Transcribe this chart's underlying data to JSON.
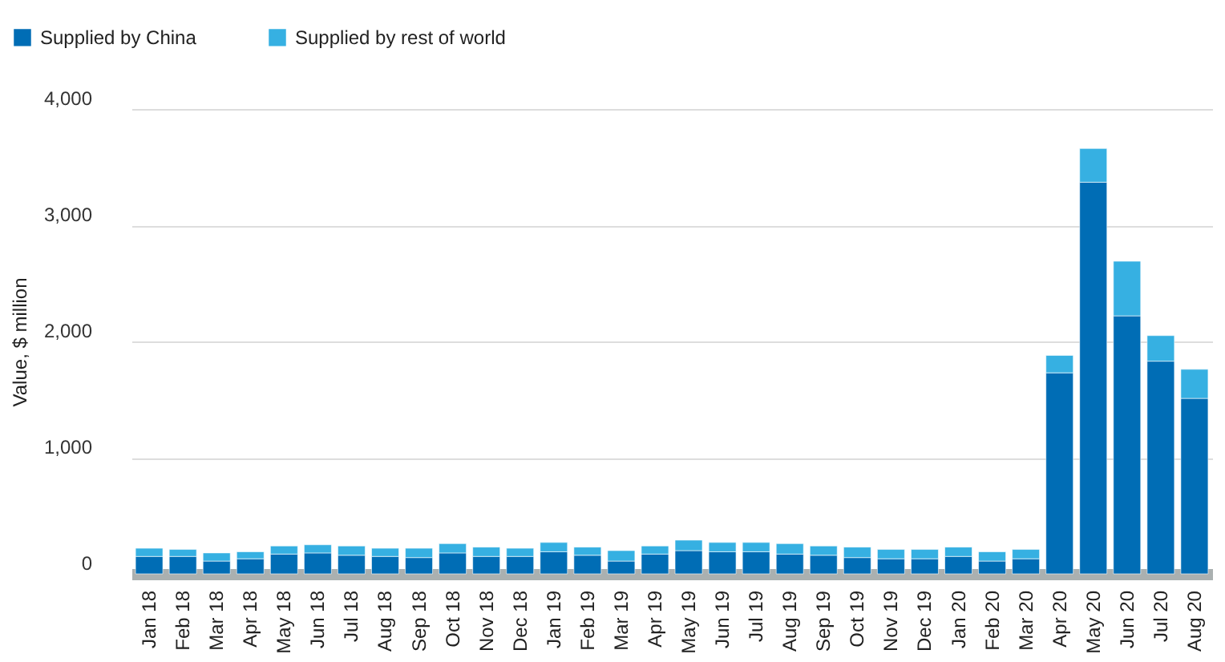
{
  "chart_data": {
    "type": "bar",
    "stacked": true,
    "ylabel": "Value, $ million",
    "categories": [
      "Jan 18",
      "Feb 18",
      "Mar 18",
      "Apr 18",
      "May 18",
      "Jun 18",
      "Jul 18",
      "Aug 18",
      "Sep 18",
      "Oct 18",
      "Nov 18",
      "Dec 18",
      "Jan 19",
      "Feb 19",
      "Mar 19",
      "Apr 19",
      "May 19",
      "Jun 19",
      "Jul 19",
      "Aug 19",
      "Sep 19",
      "Oct 19",
      "Nov 19",
      "Dec 19",
      "Jan 20",
      "Feb 20",
      "Mar 20",
      "Apr 20",
      "May 20",
      "Jun 20",
      "Jul 20",
      "Aug 20"
    ],
    "series": [
      {
        "name": "Supplied by China",
        "color": "#006db5",
        "values": [
          150,
          150,
          110,
          130,
          170,
          180,
          160,
          150,
          140,
          180,
          150,
          150,
          190,
          160,
          110,
          170,
          200,
          190,
          190,
          170,
          160,
          140,
          130,
          130,
          150,
          110,
          130,
          1730,
          3370,
          2220,
          1830,
          1510
        ]
      },
      {
        "name": "Supplied by rest of world",
        "color": "#36b0e2",
        "values": [
          70,
          60,
          70,
          60,
          70,
          70,
          80,
          70,
          80,
          80,
          80,
          70,
          80,
          70,
          90,
          70,
          90,
          80,
          80,
          90,
          80,
          90,
          80,
          80,
          80,
          80,
          80,
          150,
          290,
          470,
          220,
          250
        ]
      }
    ],
    "ylim": [
      0,
      4000
    ],
    "yticks": [
      0,
      {
        "value": 1000,
        "label": "1,000"
      },
      {
        "value": 2000,
        "label": "2,000"
      },
      {
        "value": 3000,
        "label": "3,000"
      },
      {
        "value": 4000,
        "label": "4,000"
      }
    ],
    "grid": "y",
    "legend": "top left"
  }
}
